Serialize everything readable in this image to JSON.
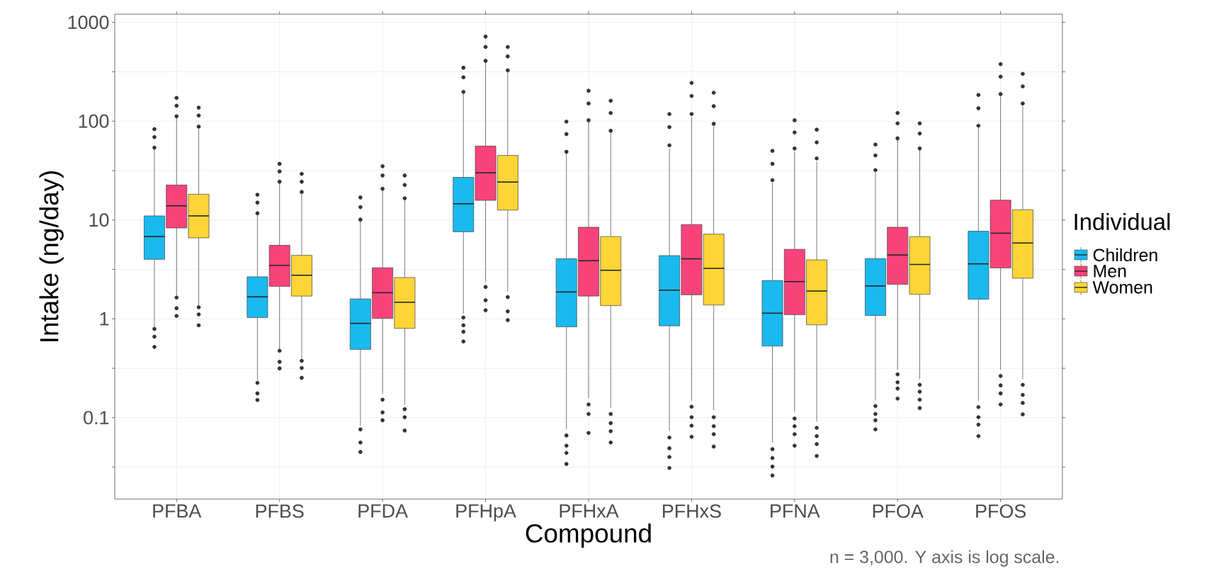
{
  "chart_data": {
    "type": "box",
    "xlabel": "Compound",
    "ylabel": "Intake (ng/day)",
    "legend_title": "Individual",
    "annotations": [
      "n = 3,000. Y axis is log scale."
    ],
    "categories": [
      "PFBA",
      "PFBS",
      "PFDA",
      "PFHpA",
      "PFHxA",
      "PFHxS",
      "PFNA",
      "PFOA",
      "PFOS"
    ],
    "log": "y",
    "grid": true,
    "legend": "right",
    "ylim": [
      0.015,
      1210
    ],
    "yticks": [
      {
        "value": 0.0316,
        "label": null
      },
      0.1,
      {
        "value": 0.316,
        "label": null
      },
      1,
      {
        "value": 3.16,
        "label": null
      },
      10,
      {
        "value": 31.6,
        "label": null
      },
      100,
      {
        "value": 316,
        "label": null
      },
      1000
    ],
    "series": [
      {
        "name": "Children",
        "color": "#1ab9ee",
        "boxes": [
          {
            "low": 0.83,
            "q1": 4.0,
            "median": 6.8,
            "q3": 11.0,
            "high": 52,
            "outliers": [
              83,
              69,
              54,
              0.79,
              0.66,
              0.52
            ]
          },
          {
            "low": 0.24,
            "q1": 1.03,
            "median": 1.67,
            "q3": 2.66,
            "high": 11.6,
            "outliers": [
              18.0,
              15.0,
              11.7,
              0.225,
              0.176,
              0.151
            ]
          },
          {
            "low": 0.083,
            "q1": 0.49,
            "median": 0.9,
            "q3": 1.59,
            "high": 9.9,
            "outliers": [
              16.9,
              13.5,
              10.1,
              0.076,
              0.056,
              0.045
            ]
          },
          {
            "low": 1.13,
            "q1": 7.6,
            "median": 14.6,
            "q3": 27,
            "high": 191,
            "outliers": [
              347,
              278,
              198,
              1.03,
              0.86,
              0.74,
              0.59
            ]
          },
          {
            "low": 0.076,
            "q1": 0.83,
            "median": 1.87,
            "q3": 4.05,
            "high": 47,
            "outliers": [
              99,
              74,
              49,
              0.066,
              0.052,
              0.044,
              0.034
            ]
          },
          {
            "low": 0.073,
            "q1": 0.85,
            "median": 1.95,
            "q3": 4.36,
            "high": 53,
            "outliers": [
              118,
              87,
              57,
              0.063,
              0.049,
              0.04,
              0.031
            ]
          },
          {
            "low": 0.056,
            "q1": 0.53,
            "median": 1.14,
            "q3": 2.44,
            "high": 23.8,
            "outliers": [
              50,
              37,
              25.3,
              0.048,
              0.039,
              0.032,
              0.026
            ]
          },
          {
            "low": 0.149,
            "q1": 1.08,
            "median": 2.15,
            "q3": 4.07,
            "high": 30.4,
            "outliers": [
              58,
              45,
              32,
              0.131,
              0.109,
              0.094,
              0.076
            ]
          },
          {
            "low": 0.147,
            "q1": 1.58,
            "median": 3.6,
            "q3": 7.7,
            "high": 85,
            "outliers": [
              184,
              135,
              90,
              0.128,
              0.101,
              0.085,
              0.065
            ]
          }
        ]
      },
      {
        "name": "Men",
        "color": "#f7437a",
        "boxes": [
          {
            "low": 1.72,
            "q1": 8.3,
            "median": 13.9,
            "q3": 22.6,
            "high": 108,
            "outliers": [
              172,
              143,
              112,
              1.64,
              1.28,
              1.07
            ]
          },
          {
            "low": 0.49,
            "q1": 2.13,
            "median": 3.47,
            "q3": 5.55,
            "high": 23.5,
            "outliers": [
              37,
              31,
              24.4,
              0.475,
              0.367,
              0.315
            ]
          },
          {
            "low": 0.176,
            "q1": 1.01,
            "median": 1.84,
            "q3": 3.29,
            "high": 20.2,
            "outliers": [
              35,
              28.2,
              20.7,
              0.152,
              0.113,
              0.094
            ]
          },
          {
            "low": 2.36,
            "q1": 15.8,
            "median": 30,
            "q3": 56,
            "high": 399,
            "outliers": [
              718,
              563,
              408,
              2.1,
              1.54,
              1.22
            ]
          },
          {
            "low": 0.158,
            "q1": 1.7,
            "median": 3.87,
            "q3": 8.45,
            "high": 99,
            "outliers": [
              203,
              151,
              102,
              0.136,
              0.109,
              0.07
            ]
          },
          {
            "low": 0.149,
            "q1": 1.75,
            "median": 4.05,
            "q3": 9.0,
            "high": 110,
            "outliers": [
              244,
              180,
              118,
              0.129,
              0.101,
              0.083,
              0.064
            ]
          },
          {
            "low": 0.113,
            "q1": 1.1,
            "median": 2.38,
            "q3": 5.05,
            "high": 49,
            "outliers": [
              102,
              77,
              53,
              0.098,
              0.082,
              0.068,
              0.052
            ]
          },
          {
            "low": 0.306,
            "q1": 2.23,
            "median": 4.42,
            "q3": 8.45,
            "high": 65,
            "outliers": [
              121,
              95,
              67,
              0.274,
              0.228,
              0.197,
              0.156
            ]
          },
          {
            "low": 0.306,
            "q1": 3.27,
            "median": 7.35,
            "q3": 15.9,
            "high": 178,
            "outliers": [
              378,
              282,
              188,
              0.264,
              0.212,
              0.176,
              0.136
            ]
          }
        ]
      },
      {
        "name": "Women",
        "color": "#fdd537",
        "boxes": [
          {
            "low": 1.38,
            "q1": 6.6,
            "median": 11.0,
            "q3": 18.2,
            "high": 83,
            "outliers": [
              137,
              114,
              88,
              1.31,
              1.11,
              0.86
            ]
          },
          {
            "low": 0.4,
            "q1": 1.7,
            "median": 2.76,
            "q3": 4.39,
            "high": 18.5,
            "outliers": [
              29.3,
              24.4,
              19.2,
              0.376,
              0.318,
              0.253
            ]
          },
          {
            "low": 0.136,
            "q1": 0.8,
            "median": 1.47,
            "q3": 2.62,
            "high": 16.2,
            "outliers": [
              28.2,
              22.6,
              16.6,
              0.122,
              0.101,
              0.074
            ]
          },
          {
            "low": 1.88,
            "q1": 12.6,
            "median": 24.2,
            "q3": 45,
            "high": 318,
            "outliers": [
              563,
              452,
              327,
              1.66,
              1.19,
              0.97
            ]
          },
          {
            "low": 0.126,
            "q1": 1.36,
            "median": 3.1,
            "q3": 6.8,
            "high": 77,
            "outliers": [
              161,
              121,
              80,
              0.109,
              0.088,
              0.073,
              0.056
            ]
          },
          {
            "low": 0.119,
            "q1": 1.38,
            "median": 3.24,
            "q3": 7.2,
            "high": 88,
            "outliers": [
              194,
              142,
              94,
              0.101,
              0.082,
              0.068,
              0.051
            ]
          },
          {
            "low": 0.091,
            "q1": 0.87,
            "median": 1.91,
            "q3": 3.95,
            "high": 39,
            "outliers": [
              82,
              61,
              42,
              0.079,
              0.065,
              0.054,
              0.041
            ]
          },
          {
            "low": 0.245,
            "q1": 1.77,
            "median": 3.55,
            "q3": 6.8,
            "high": 51,
            "outliers": [
              95,
              75,
              53,
              0.215,
              0.183,
              0.152,
              0.125
            ]
          },
          {
            "low": 0.245,
            "q1": 2.58,
            "median": 5.85,
            "q3": 12.7,
            "high": 142,
            "outliers": [
              301,
              225,
              151,
              0.215,
              0.17,
              0.141,
              0.108
            ]
          }
        ]
      }
    ]
  }
}
